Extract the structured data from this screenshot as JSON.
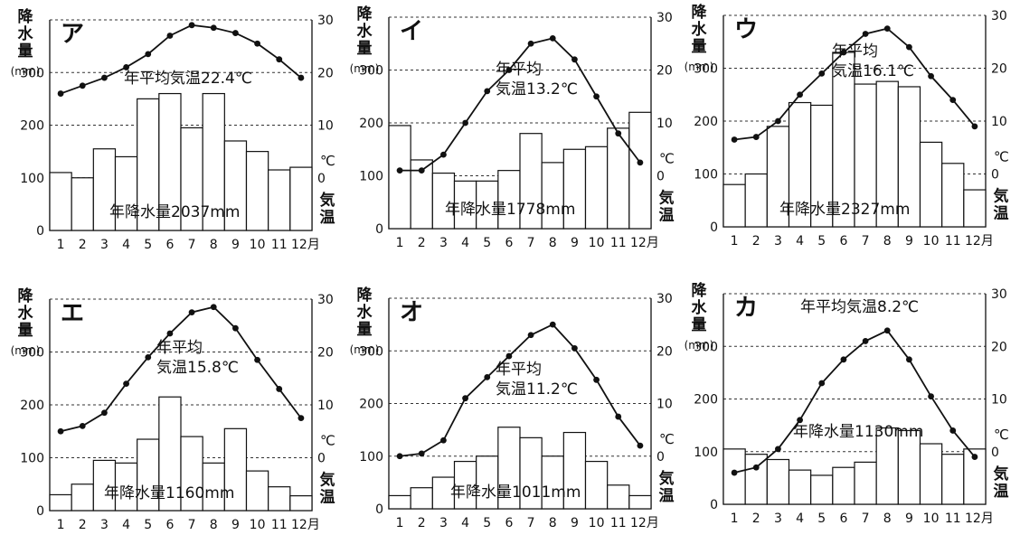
{
  "labels": {
    "precip_axis": "降水量",
    "precip_unit": "(mm)",
    "temp_unit": "℃",
    "temp_axis": "気温",
    "month_suffix": "月"
  },
  "months": [
    "1",
    "2",
    "3",
    "4",
    "5",
    "6",
    "7",
    "8",
    "9",
    "10",
    "11",
    "12"
  ],
  "precip_ticks": [
    0,
    100,
    200,
    300
  ],
  "temp_ticks": [
    0,
    10,
    20,
    30
  ],
  "chart_data": [
    {
      "type": "bar",
      "id": "ア",
      "title": "ア",
      "categories": [
        "1",
        "2",
        "3",
        "4",
        "5",
        "6",
        "7",
        "8",
        "9",
        "10",
        "11",
        "12"
      ],
      "series": [
        {
          "name": "降水量",
          "values": [
            110,
            100,
            155,
            140,
            250,
            260,
            195,
            260,
            170,
            150,
            115,
            120
          ]
        },
        {
          "name": "気温",
          "values": [
            16,
            17.5,
            19,
            21,
            23.5,
            27,
            29,
            28.5,
            27.5,
            25.5,
            22.5,
            19
          ]
        }
      ],
      "annual_temp_note": [
        "年平均気温22.4℃"
      ],
      "annual_precip_note": "年降水量2037mm",
      "ylim_precip": [
        0,
        400
      ],
      "ylim_temp": [
        -10,
        30
      ]
    },
    {
      "type": "bar",
      "id": "イ",
      "title": "イ",
      "categories": [
        "1",
        "2",
        "3",
        "4",
        "5",
        "6",
        "7",
        "8",
        "9",
        "10",
        "11",
        "12"
      ],
      "series": [
        {
          "name": "降水量",
          "values": [
            195,
            130,
            105,
            90,
            90,
            110,
            180,
            125,
            150,
            155,
            190,
            220
          ]
        },
        {
          "name": "気温",
          "values": [
            1,
            1,
            4,
            10,
            16,
            20,
            25,
            26,
            22,
            15,
            8,
            2.5
          ]
        }
      ],
      "annual_temp_note": [
        "年平均",
        "気温13.2℃"
      ],
      "annual_precip_note": "年降水量1778mm",
      "ylim_precip": [
        0,
        400
      ],
      "ylim_temp": [
        -10,
        30
      ]
    },
    {
      "type": "bar",
      "id": "ウ",
      "title": "ウ",
      "categories": [
        "1",
        "2",
        "3",
        "4",
        "5",
        "6",
        "7",
        "8",
        "9",
        "10",
        "11",
        "12"
      ],
      "series": [
        {
          "name": "降水量",
          "values": [
            80,
            100,
            190,
            235,
            230,
            330,
            270,
            275,
            265,
            160,
            120,
            70
          ]
        },
        {
          "name": "気温",
          "values": [
            6.5,
            7,
            10,
            15,
            19,
            23,
            26.5,
            27.5,
            24,
            18.5,
            14,
            9
          ]
        }
      ],
      "annual_temp_note": [
        "年平均",
        "気温16.1℃"
      ],
      "annual_precip_note": "年降水量2327mm",
      "ylim_precip": [
        0,
        400
      ],
      "ylim_temp": [
        -10,
        30
      ]
    },
    {
      "type": "bar",
      "id": "エ",
      "title": "エ",
      "categories": [
        "1",
        "2",
        "3",
        "4",
        "5",
        "6",
        "7",
        "8",
        "9",
        "10",
        "11",
        "12"
      ],
      "series": [
        {
          "name": "降水量",
          "values": [
            30,
            50,
            95,
            90,
            135,
            215,
            140,
            90,
            155,
            75,
            45,
            28
          ]
        },
        {
          "name": "気温",
          "values": [
            5,
            6,
            8.5,
            14,
            19,
            23.5,
            27.5,
            28.5,
            24.5,
            18.5,
            13,
            7.5
          ]
        }
      ],
      "annual_temp_note": [
        "年平均",
        "気温15.8℃"
      ],
      "annual_precip_note": "年降水量1160mm",
      "ylim_precip": [
        0,
        400
      ],
      "ylim_temp": [
        -10,
        30
      ]
    },
    {
      "type": "bar",
      "id": "オ",
      "title": "オ",
      "categories": [
        "1",
        "2",
        "3",
        "4",
        "5",
        "6",
        "7",
        "8",
        "9",
        "10",
        "11",
        "12"
      ],
      "series": [
        {
          "name": "降水量",
          "values": [
            25,
            40,
            60,
            90,
            100,
            155,
            135,
            100,
            145,
            90,
            45,
            25
          ]
        },
        {
          "name": "気温",
          "values": [
            0,
            0.5,
            3,
            11,
            15,
            19,
            23,
            25,
            20.5,
            14.5,
            7.5,
            2
          ]
        }
      ],
      "annual_temp_note": [
        "年平均",
        "気温11.2℃"
      ],
      "annual_precip_note": "年降水量1011mm",
      "ylim_precip": [
        0,
        400
      ],
      "ylim_temp": [
        -10,
        30
      ]
    },
    {
      "type": "bar",
      "id": "カ",
      "title": "カ",
      "categories": [
        "1",
        "2",
        "3",
        "4",
        "5",
        "6",
        "7",
        "8",
        "9",
        "10",
        "11",
        "12"
      ],
      "series": [
        {
          "name": "降水量",
          "values": [
            105,
            95,
            85,
            65,
            55,
            70,
            80,
            145,
            140,
            115,
            95,
            105
          ]
        },
        {
          "name": "気温",
          "values": [
            -4,
            -3,
            0.5,
            6,
            13,
            17.5,
            21,
            23,
            17.5,
            10.5,
            4,
            -1
          ]
        }
      ],
      "annual_temp_note": [
        "年平均気温8.2℃"
      ],
      "annual_precip_note": "年降水量1130mm",
      "ylim_precip": [
        0,
        400
      ],
      "ylim_temp": [
        -10,
        30
      ]
    }
  ]
}
